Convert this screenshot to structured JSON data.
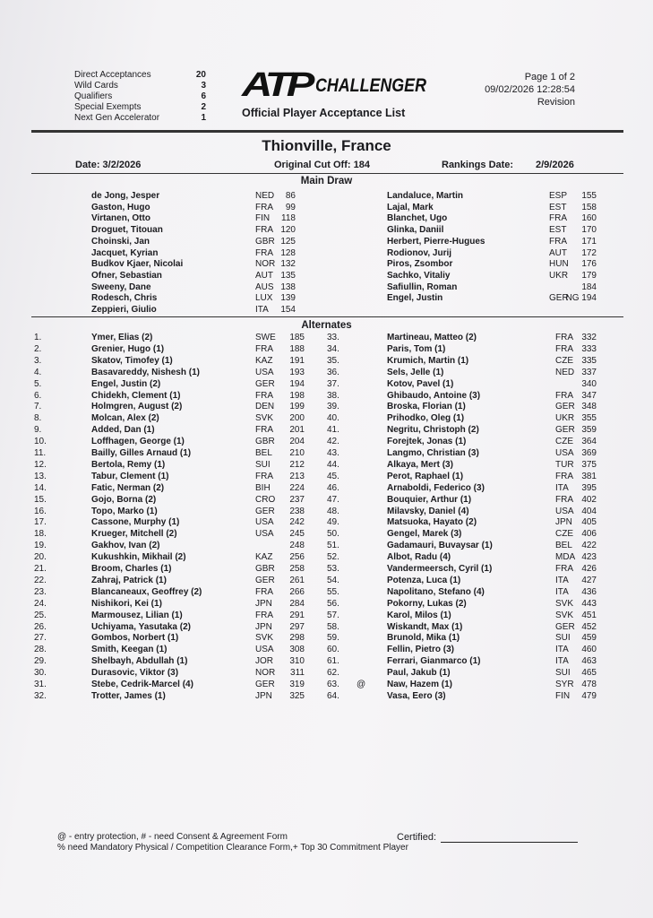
{
  "header": {
    "stats": [
      {
        "label": "Direct Acceptances",
        "value": "20"
      },
      {
        "label": "Wild Cards",
        "value": "3"
      },
      {
        "label": "Qualifiers",
        "value": "6"
      },
      {
        "label": "Special Exempts",
        "value": "2"
      },
      {
        "label": "Next Gen Accelerator",
        "value": "1"
      }
    ],
    "logo_text": "ATP CHALLENGER",
    "subtitle": "Official Player Acceptance List",
    "page": "Page 1 of 2",
    "timestamp": "09/02/2026 12:28:54",
    "revision": "Revision"
  },
  "tournament": {
    "title": "Thionville, France",
    "date": "Date: 3/2/2026",
    "cutoff": "Original Cut Off: 184",
    "rankings_label": "Rankings Date:",
    "rankings_date": "2/9/2026"
  },
  "main_draw": {
    "label": "Main Draw",
    "left": [
      [
        "de Jong, Jesper",
        "NED",
        "86"
      ],
      [
        "Gaston, Hugo",
        "FRA",
        "99"
      ],
      [
        "Virtanen, Otto",
        "FIN",
        "118"
      ],
      [
        "Droguet, Titouan",
        "FRA",
        "120"
      ],
      [
        "Choinski, Jan",
        "GBR",
        "125"
      ],
      [
        "Jacquet, Kyrian",
        "FRA",
        "128"
      ],
      [
        "Budkov Kjaer, Nicolai",
        "NOR",
        "132"
      ],
      [
        "Ofner, Sebastian",
        "AUT",
        "135"
      ],
      [
        "Sweeny, Dane",
        "AUS",
        "138"
      ],
      [
        "Rodesch, Chris",
        "LUX",
        "139"
      ],
      [
        "Zeppieri, Giulio",
        "ITA",
        "154"
      ]
    ],
    "right": [
      [
        "Landaluce, Martin",
        "ESP",
        "155"
      ],
      [
        "Lajal, Mark",
        "EST",
        "158"
      ],
      [
        "Blanchet, Ugo",
        "FRA",
        "160"
      ],
      [
        "Glinka, Daniil",
        "EST",
        "170"
      ],
      [
        "Herbert, Pierre-Hugues",
        "FRA",
        "171"
      ],
      [
        "Rodionov, Jurij",
        "AUT",
        "172"
      ],
      [
        "Piros, Zsombor",
        "HUN",
        "176"
      ],
      [
        "Sachko, Vitaliy",
        "UKR",
        "179"
      ],
      [
        "Safiullin, Roman",
        "",
        "184"
      ],
      [
        "Engel, Justin",
        "GER",
        "NG 194"
      ]
    ]
  },
  "alternates": {
    "label": "Alternates",
    "left": [
      [
        "1.",
        "",
        "Ymer, Elias (2)",
        "SWE",
        "185"
      ],
      [
        "2.",
        "",
        "Grenier, Hugo (1)",
        "FRA",
        "188"
      ],
      [
        "3.",
        "",
        "Skatov, Timofey (1)",
        "KAZ",
        "191"
      ],
      [
        "4.",
        "",
        "Basavareddy, Nishesh (1)",
        "USA",
        "193"
      ],
      [
        "5.",
        "",
        "Engel, Justin (2)",
        "GER",
        "194"
      ],
      [
        "6.",
        "",
        "Chidekh, Clement (1)",
        "FRA",
        "198"
      ],
      [
        "7.",
        "",
        "Holmgren, August (2)",
        "DEN",
        "199"
      ],
      [
        "8.",
        "",
        "Molcan, Alex (2)",
        "SVK",
        "200"
      ],
      [
        "9.",
        "",
        "Added, Dan (1)",
        "FRA",
        "201"
      ],
      [
        "10.",
        "",
        "Loffhagen, George (1)",
        "GBR",
        "204"
      ],
      [
        "11.",
        "",
        "Bailly, Gilles Arnaud (1)",
        "BEL",
        "210"
      ],
      [
        "12.",
        "",
        "Bertola, Remy (1)",
        "SUI",
        "212"
      ],
      [
        "13.",
        "",
        "Tabur, Clement (1)",
        "FRA",
        "213"
      ],
      [
        "14.",
        "",
        "Fatic, Nerman (2)",
        "BIH",
        "224"
      ],
      [
        "15.",
        "",
        "Gojo, Borna (2)",
        "CRO",
        "237"
      ],
      [
        "16.",
        "",
        "Topo, Marko (1)",
        "GER",
        "238"
      ],
      [
        "17.",
        "",
        "Cassone, Murphy (1)",
        "USA",
        "242"
      ],
      [
        "18.",
        "",
        "Krueger, Mitchell (2)",
        "USA",
        "245"
      ],
      [
        "19.",
        "",
        "Gakhov, Ivan (2)",
        "",
        "248"
      ],
      [
        "20.",
        "",
        "Kukushkin, Mikhail (2)",
        "KAZ",
        "256"
      ],
      [
        "21.",
        "",
        "Broom, Charles (1)",
        "GBR",
        "258"
      ],
      [
        "22.",
        "",
        "Zahraj, Patrick (1)",
        "GER",
        "261"
      ],
      [
        "23.",
        "",
        "Blancaneaux, Geoffrey (2)",
        "FRA",
        "266"
      ],
      [
        "24.",
        "",
        "Nishikori, Kei (1)",
        "JPN",
        "284"
      ],
      [
        "25.",
        "",
        "Marmousez, Lilian (1)",
        "FRA",
        "291"
      ],
      [
        "26.",
        "",
        "Uchiyama, Yasutaka (2)",
        "JPN",
        "297"
      ],
      [
        "27.",
        "",
        "Gombos, Norbert (1)",
        "SVK",
        "298"
      ],
      [
        "28.",
        "",
        "Smith, Keegan (1)",
        "USA",
        "308"
      ],
      [
        "29.",
        "",
        "Shelbayh, Abdullah (1)",
        "JOR",
        "310"
      ],
      [
        "30.",
        "",
        "Durasovic, Viktor (3)",
        "NOR",
        "311"
      ],
      [
        "31.",
        "",
        "Stebe, Cedrik-Marcel (4)",
        "GER",
        "319"
      ],
      [
        "32.",
        "",
        "Trotter, James (1)",
        "JPN",
        "325"
      ]
    ],
    "right": [
      [
        "33.",
        "",
        "Martineau, Matteo (2)",
        "FRA",
        "332"
      ],
      [
        "34.",
        "",
        "Paris, Tom (1)",
        "FRA",
        "333"
      ],
      [
        "35.",
        "",
        "Krumich, Martin (1)",
        "CZE",
        "335"
      ],
      [
        "36.",
        "",
        "Sels, Jelle (1)",
        "NED",
        "337"
      ],
      [
        "37.",
        "",
        "Kotov, Pavel (1)",
        "",
        "340"
      ],
      [
        "38.",
        "",
        "Ghibaudo, Antoine (3)",
        "FRA",
        "347"
      ],
      [
        "39.",
        "",
        "Broska, Florian (1)",
        "GER",
        "348"
      ],
      [
        "40.",
        "",
        "Prihodko, Oleg (1)",
        "UKR",
        "355"
      ],
      [
        "41.",
        "",
        "Negritu, Christoph (2)",
        "GER",
        "359"
      ],
      [
        "42.",
        "",
        "Forejtek, Jonas (1)",
        "CZE",
        "364"
      ],
      [
        "43.",
        "",
        "Langmo, Christian (3)",
        "USA",
        "369"
      ],
      [
        "44.",
        "",
        "Alkaya, Mert (3)",
        "TUR",
        "375"
      ],
      [
        "45.",
        "",
        "Perot, Raphael (1)",
        "FRA",
        "381"
      ],
      [
        "46.",
        "",
        "Arnaboldi, Federico (3)",
        "ITA",
        "395"
      ],
      [
        "47.",
        "",
        "Bouquier, Arthur (1)",
        "FRA",
        "402"
      ],
      [
        "48.",
        "",
        "Milavsky, Daniel (4)",
        "USA",
        "404"
      ],
      [
        "49.",
        "",
        "Matsuoka, Hayato (2)",
        "JPN",
        "405"
      ],
      [
        "50.",
        "",
        "Gengel, Marek (3)",
        "CZE",
        "406"
      ],
      [
        "51.",
        "",
        "Gadamauri, Buvaysar (1)",
        "BEL",
        "422"
      ],
      [
        "52.",
        "",
        "Albot, Radu (4)",
        "MDA",
        "423"
      ],
      [
        "53.",
        "",
        "Vandermeersch, Cyril (1)",
        "FRA",
        "426"
      ],
      [
        "54.",
        "",
        "Potenza, Luca (1)",
        "ITA",
        "427"
      ],
      [
        "55.",
        "",
        "Napolitano, Stefano (4)",
        "ITA",
        "436"
      ],
      [
        "56.",
        "",
        "Pokorny, Lukas (2)",
        "SVK",
        "443"
      ],
      [
        "57.",
        "",
        "Karol, Milos (1)",
        "SVK",
        "451"
      ],
      [
        "58.",
        "",
        "Wiskandt, Max (1)",
        "GER",
        "452"
      ],
      [
        "59.",
        "",
        "Brunold, Mika (1)",
        "SUI",
        "459"
      ],
      [
        "60.",
        "",
        "Fellin, Pietro (3)",
        "ITA",
        "460"
      ],
      [
        "61.",
        "",
        "Ferrari, Gianmarco (1)",
        "ITA",
        "463"
      ],
      [
        "62.",
        "",
        "Paul, Jakub (1)",
        "SUI",
        "465"
      ],
      [
        "63.",
        "@",
        "Naw, Hazem (1)",
        "SYR",
        "478"
      ],
      [
        "64.",
        "",
        "Vasa, Eero (3)",
        "FIN",
        "479"
      ]
    ]
  },
  "footer": {
    "legend_line1": "@ - entry protection, # - need Consent & Agreement Form",
    "legend_line2": "% need Mandatory Physical / Competition Clearance Form,+ Top 30 Commitment Player",
    "certified": "Certified:"
  }
}
